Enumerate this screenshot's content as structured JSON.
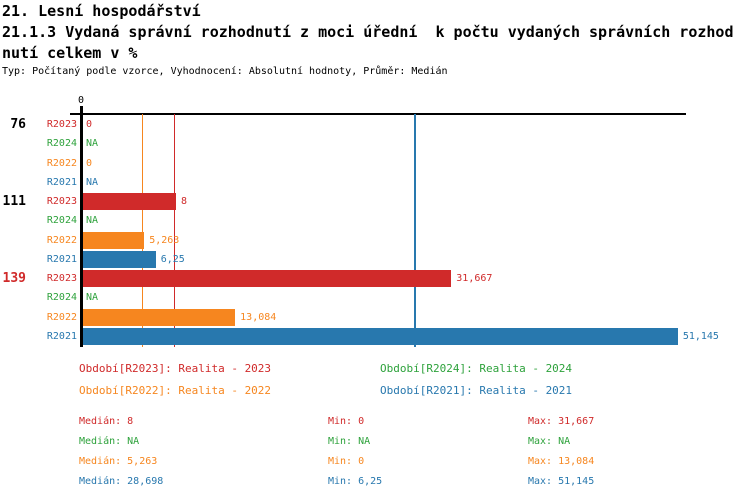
{
  "header": {
    "line1": "21. Lesní hospodářství",
    "line2": "21.1.3 Vydaná správní rozhodnutí z moci úřední  k počtu vydaných správních rozhod",
    "line3": "nutí celkem v %",
    "meta": "Typ: Počítaný podle vzorce, Vyhodnocení: Absolutní hodnoty, Průměr: Medián"
  },
  "colors": {
    "R2023": "#D02A2A",
    "R2024": "#2EA23C",
    "R2022": "#F6861F",
    "R2021": "#2878AE",
    "axis": "#000000",
    "group_label_default": "#000000"
  },
  "chart_data": {
    "type": "bar",
    "orientation": "horizontal",
    "unit": "%",
    "x_axis": {
      "tick_labels": [
        "0"
      ],
      "origin_label": "0"
    },
    "series_order": [
      "R2023",
      "R2024",
      "R2022",
      "R2021"
    ],
    "groups": [
      {
        "label": "76",
        "label_color": "#000000",
        "bars": [
          {
            "series": "R2023",
            "value": 0,
            "display": "0"
          },
          {
            "series": "R2024",
            "value": null,
            "display": "NA"
          },
          {
            "series": "R2022",
            "value": 0,
            "display": "0"
          },
          {
            "series": "R2021",
            "value": null,
            "display": "NA"
          }
        ]
      },
      {
        "label": "111",
        "label_color": "#000000",
        "bars": [
          {
            "series": "R2023",
            "value": 8,
            "display": "8"
          },
          {
            "series": "R2024",
            "value": null,
            "display": "NA"
          },
          {
            "series": "R2022",
            "value": 5.263,
            "display": "5,263"
          },
          {
            "series": "R2021",
            "value": 6.25,
            "display": "6,25"
          }
        ]
      },
      {
        "label": "139",
        "label_color": "#D02A2A",
        "bars": [
          {
            "series": "R2023",
            "value": 31.667,
            "display": "31,667"
          },
          {
            "series": "R2024",
            "value": null,
            "display": "NA"
          },
          {
            "series": "R2022",
            "value": 13.084,
            "display": "13,084"
          },
          {
            "series": "R2021",
            "value": 51.145,
            "display": "51,145"
          }
        ]
      }
    ],
    "median_lines": [
      {
        "series": "R2022",
        "value": 5.263
      },
      {
        "series": "R2023",
        "value": 8
      },
      {
        "series": "R2021",
        "value": 28.698
      }
    ]
  },
  "legend": {
    "items": [
      {
        "series": "R2023",
        "text": "Období[R2023]: Realita - 2023"
      },
      {
        "series": "R2024",
        "text": "Období[R2024]: Realita - 2024"
      },
      {
        "series": "R2022",
        "text": "Období[R2022]: Realita - 2022"
      },
      {
        "series": "R2021",
        "text": "Období[R2021]: Realita - 2021"
      }
    ]
  },
  "summary": {
    "rows": [
      {
        "series": "R2023",
        "median": "Medián: 8",
        "min": "Min: 0",
        "max": "Max: 31,667"
      },
      {
        "series": "R2024",
        "median": "Medián: NA",
        "min": "Min: NA",
        "max": "Max: NA"
      },
      {
        "series": "R2022",
        "median": "Medián: 5,263",
        "min": "Min: 0",
        "max": "Max: 13,084"
      },
      {
        "series": "R2021",
        "median": "Medián: 28,698",
        "min": "Min: 6,25",
        "max": "Max: 51,145"
      }
    ]
  }
}
